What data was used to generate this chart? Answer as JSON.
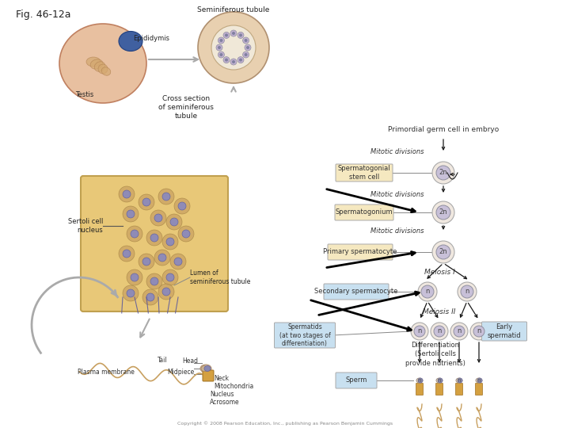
{
  "title": "Fig. 46-12a",
  "bg_color": "#ffffff",
  "title_fontsize": 9,
  "labels": {
    "epididymis": "Epididymis",
    "seminiferous_tubule": "Seminiferous tubule",
    "testis": "Testis",
    "cross_section": "Cross section\nof seminiferous\ntubule",
    "sertoli_nuclei": "Sertoli cell\nnucleus",
    "primordial": "Primordial germ cell in embryo",
    "mitotic1": "Mitotic divisions",
    "sperm_stem": "Spermatogonial\nstem cell",
    "mitotic2": "Mitotic divisions",
    "spermatogonium": "Spermatogonium",
    "mitotic3": "Mitotic divisions",
    "primary_spermatocyte": "Primary spermatocyte",
    "meiosis_I": "Meiosis I",
    "secondary_spermatocyte": "Secondary spermatocyte",
    "meiosis_II": "Meiosis II",
    "spermatids_label": "Spermatids\n(at two stages of\ndifferentiation)",
    "early_spermatid": "Early\nspermatid",
    "differentiation": "Differentiation\n(Sertoli cells\nprovide nutrients)",
    "sperm_label": "Sperm",
    "lumen_label": "Lumen of\nseminiferous tubule",
    "neck": "Neck",
    "midpiece": "Midpiece",
    "head_label": "Head",
    "tail": "Tail",
    "plasma_membrane": "Plasma membrane",
    "mitochondria": "Mitochondria",
    "nucleus_label": "Nucleus",
    "acrosome": "Acrosome",
    "copyright": "Copyright © 2008 Pearson Education, Inc., publishing as Pearson Benjamin Cummings"
  },
  "cell_colors": {
    "outer_ring": "#f0e8e0",
    "inner_nucleus": "#c8c0d8",
    "box_stem": "#f5e8c0",
    "box_secondary": "#c8e0f0",
    "box_sperm": "#c8e0f0",
    "box_spermatids": "#c8e0f0",
    "arrow_color": "#1a1a1a",
    "line_color": "#888888",
    "testis_body": "#e8b898",
    "tubule_color": "#d4a870"
  }
}
